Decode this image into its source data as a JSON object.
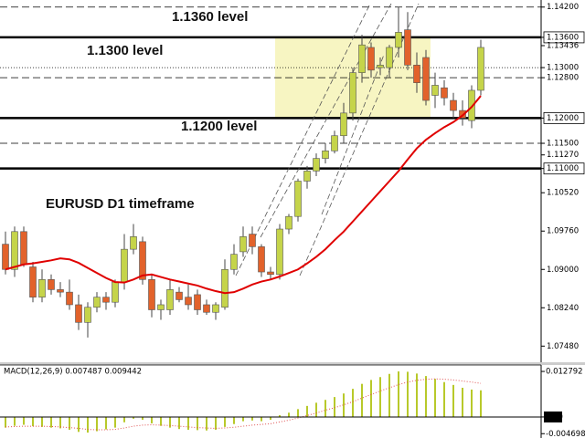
{
  "chart_data": {
    "type": "candlestick",
    "annotations": [
      "1.1360 level",
      "1.1300 level",
      "1.1200 level",
      "EURUSD D1 timeframe"
    ],
    "open": [
      1.095,
      1.09,
      1.0975,
      1.0905,
      1.0845,
      1.088,
      1.086,
      1.0855,
      1.083,
      1.0795,
      1.0825,
      1.0845,
      1.0835,
      1.0875,
      1.094,
      1.0955,
      1.088,
      1.082,
      1.082,
      1.0855,
      1.0845,
      1.085,
      1.083,
      1.0815,
      1.0825,
      1.09,
      1.0935,
      1.097,
      1.0945,
      1.0895,
      1.089,
      1.098,
      1.1005,
      1.1075,
      1.1095,
      1.112,
      1.1135,
      1.1165,
      1.121,
      1.129,
      1.134,
      1.13,
      1.13,
      1.134,
      1.1375,
      1.1305,
      1.132,
      1.1245,
      1.126,
      1.1235,
      1.1215,
      1.1195,
      1.1255
    ],
    "high": [
      1.0975,
      1.0985,
      1.0985,
      1.0915,
      1.09,
      1.089,
      1.0875,
      1.088,
      1.085,
      1.0835,
      1.0855,
      1.0855,
      1.088,
      1.097,
      1.099,
      1.0965,
      1.089,
      1.084,
      1.088,
      1.0865,
      1.087,
      1.086,
      1.084,
      1.0835,
      1.092,
      1.095,
      1.0985,
      1.0985,
      1.095,
      1.0905,
      1.099,
      1.101,
      1.108,
      1.1105,
      1.113,
      1.115,
      1.1175,
      1.123,
      1.13,
      1.1365,
      1.135,
      1.132,
      1.1345,
      1.142,
      1.141,
      1.133,
      1.1335,
      1.129,
      1.1275,
      1.125,
      1.1235,
      1.1265,
      1.1355
    ],
    "low": [
      1.089,
      1.0885,
      1.0905,
      1.0835,
      1.0835,
      1.085,
      1.0845,
      1.082,
      1.078,
      1.0765,
      1.0815,
      1.082,
      1.0825,
      1.086,
      1.093,
      1.087,
      1.0805,
      1.08,
      1.081,
      1.0835,
      1.082,
      1.081,
      1.081,
      1.08,
      1.082,
      1.089,
      1.0925,
      1.093,
      1.0885,
      1.088,
      1.088,
      1.097,
      1.0995,
      1.106,
      1.1085,
      1.111,
      1.113,
      1.115,
      1.1195,
      1.127,
      1.128,
      1.1285,
      1.128,
      1.132,
      1.1295,
      1.125,
      1.1225,
      1.122,
      1.1225,
      1.12,
      1.1185,
      1.118,
      1.1245
    ],
    "close": [
      1.09,
      1.0975,
      1.091,
      1.0845,
      1.088,
      1.086,
      1.0855,
      1.083,
      1.0795,
      1.0825,
      1.0845,
      1.0835,
      1.0875,
      1.094,
      1.0965,
      1.088,
      1.082,
      1.083,
      1.086,
      1.084,
      1.083,
      1.082,
      1.0815,
      1.083,
      1.09,
      1.093,
      1.0965,
      1.0945,
      1.0895,
      1.089,
      1.098,
      1.1005,
      1.1075,
      1.1095,
      1.112,
      1.1135,
      1.1165,
      1.121,
      1.129,
      1.1345,
      1.1295,
      1.1305,
      1.134,
      1.137,
      1.1305,
      1.127,
      1.1235,
      1.1265,
      1.124,
      1.1215,
      1.12,
      1.1255,
      1.134
    ],
    "bull_color": "#c5d44a",
    "bear_color": "#e2622b",
    "ma": {
      "color": "#e00000",
      "values": [
        1.09,
        1.0905,
        1.091,
        1.0912,
        1.0915,
        1.0918,
        1.0922,
        1.092,
        1.0913,
        1.0903,
        1.0893,
        1.0883,
        1.0875,
        1.0874,
        1.088,
        1.0888,
        1.089,
        1.0885,
        1.088,
        1.0876,
        1.0872,
        1.0868,
        1.0862,
        1.0857,
        1.0853,
        1.0855,
        1.0862,
        1.087,
        1.0876,
        1.088,
        1.0886,
        1.0893,
        1.09,
        1.0912,
        1.0925,
        1.094,
        1.0958,
        1.0975,
        1.0995,
        1.1015,
        1.1035,
        1.1055,
        1.1075,
        1.1095,
        1.1118,
        1.114,
        1.1157,
        1.117,
        1.1182,
        1.1192,
        1.1205,
        1.1222,
        1.1244
      ]
    },
    "zone": {
      "from": 1.12,
      "to": 1.136,
      "start_index": 30,
      "end_index": 46,
      "color": "#f7f5c2"
    },
    "levels": [
      {
        "value": 1.142,
        "style": "dashed"
      },
      {
        "value": 1.136,
        "style": "thick"
      },
      {
        "value": 1.13,
        "style": "dotted"
      },
      {
        "value": 1.128,
        "style": "dashed"
      },
      {
        "value": 1.12,
        "style": "thick"
      },
      {
        "value": 1.115,
        "style": "dashed"
      },
      {
        "value": 1.11,
        "style": "thick"
      }
    ],
    "ylim": [
      1.0716,
      1.1434
    ],
    "yticks": [
      {
        "value": 1.142,
        "label": "1.14200"
      },
      {
        "value": 1.136,
        "label": "1.13600"
      },
      {
        "value": 1.13436,
        "label": "1.13436"
      },
      {
        "value": 1.13,
        "label": "1.13000"
      },
      {
        "value": 1.128,
        "label": "1.12800"
      },
      {
        "value": 1.12,
        "label": "1.12000"
      },
      {
        "value": 1.115,
        "label": "1.11500"
      },
      {
        "value": 1.1127,
        "label": "1.11270"
      },
      {
        "value": 1.11,
        "label": "1.11000"
      },
      {
        "value": 1.1052,
        "label": "1.10520"
      },
      {
        "value": 1.0976,
        "label": "1.09760"
      },
      {
        "value": 1.09,
        "label": "1.09000"
      },
      {
        "value": 1.0824,
        "label": "1.08240"
      },
      {
        "value": 1.0748,
        "label": "1.07480"
      }
    ],
    "indicator": {
      "type": "bar",
      "label": "MACD(12,26,9) 0.007487 0.009442",
      "color": "#b8c92a",
      "signal_color": "#e05050",
      "values": [
        -0.003,
        -0.0025,
        -0.0022,
        -0.0026,
        -0.0028,
        -0.003,
        -0.0032,
        -0.0036,
        -0.0042,
        -0.0044,
        -0.004,
        -0.0035,
        -0.003,
        -0.0015,
        -0.0005,
        -0.0008,
        -0.0018,
        -0.0025,
        -0.003,
        -0.0034,
        -0.0036,
        -0.0037,
        -0.0038,
        -0.0036,
        -0.0028,
        -0.002,
        -0.0012,
        -0.001,
        -0.0012,
        -0.0008,
        0.0005,
        0.0012,
        0.0022,
        0.0031,
        0.004,
        0.0048,
        0.0056,
        0.0066,
        0.0079,
        0.0093,
        0.0104,
        0.0112,
        0.0121,
        0.0128,
        0.0127,
        0.0122,
        0.0115,
        0.0107,
        0.0098,
        0.009,
        0.0082,
        0.0077,
        0.007487
      ],
      "signal": [
        -0.0028,
        -0.0027,
        -0.0026,
        -0.0026,
        -0.0026,
        -0.0027,
        -0.0028,
        -0.003,
        -0.0032,
        -0.0035,
        -0.0036,
        -0.0036,
        -0.0035,
        -0.0031,
        -0.0026,
        -0.0023,
        -0.0022,
        -0.0023,
        -0.0024,
        -0.0026,
        -0.0028,
        -0.003,
        -0.0031,
        -0.0032,
        -0.0031,
        -0.0029,
        -0.0026,
        -0.0023,
        -0.0021,
        -0.0019,
        -0.0014,
        -0.0009,
        -0.0003,
        0.0004,
        0.0011,
        0.0019,
        0.0026,
        0.0034,
        0.0043,
        0.0053,
        0.0063,
        0.0073,
        0.0082,
        0.0091,
        0.0098,
        0.0103,
        0.0106,
        0.0107,
        0.0106,
        0.0104,
        0.0101,
        0.0098,
        0.009442
      ],
      "ylim": [
        -0.0054,
        0.0146
      ],
      "yticks": [
        0.012792,
        {
          "value": 0,
          "label": "0.00"
        },
        -0.004698
      ]
    }
  }
}
